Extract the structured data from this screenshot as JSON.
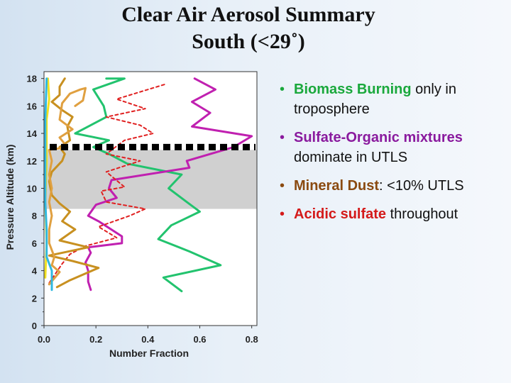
{
  "title_line1": "Clear Air Aerosol Summary",
  "title_line2": "South (<29˚)",
  "bullets": [
    {
      "highlight": "Biomass Burning",
      "rest": " only in troposphere",
      "color": "#1aa83c"
    },
    {
      "highlight": "Sulfate-Organic mixtures",
      "rest": " dominate in UTLS",
      "color": "#8a1a9e"
    },
    {
      "highlight": "Mineral Dust",
      "rest": ": <10% UTLS",
      "color": "#8a4a10"
    },
    {
      "highlight": "Acidic sulfate",
      "rest": " throughout",
      "color": "#d41a1a"
    }
  ],
  "bullet_symbol": "•",
  "chart_data": {
    "type": "line",
    "xlabel": "Number Fraction",
    "ylabel": "Pressure Altitude (km)",
    "xlim": [
      0,
      0.82
    ],
    "ylim": [
      0,
      18.5
    ],
    "xticks": [
      0.0,
      0.2,
      0.4,
      0.6,
      0.8
    ],
    "xtick_labels": [
      "0.0",
      "0.2",
      "0.4",
      "0.6",
      "0.8"
    ],
    "yticks": [
      0,
      2,
      4,
      6,
      8,
      10,
      12,
      14,
      16,
      18
    ],
    "ytick_labels": [
      "0",
      "2",
      "4",
      "6",
      "8",
      "10",
      "12",
      "14",
      "16",
      "18"
    ],
    "grid": false,
    "shaded_band": {
      "y": [
        8.5,
        12.8
      ],
      "color": "#d0d0d0"
    },
    "tropopause_line": {
      "y": 13.0,
      "style": "dashed",
      "color": "#000000"
    },
    "series": [
      {
        "color": "#22c36e",
        "dashed": false,
        "points": [
          [
            0.53,
            2.5
          ],
          [
            0.46,
            3.5
          ],
          [
            0.68,
            4.4
          ],
          [
            0.56,
            5.4
          ],
          [
            0.44,
            6.3
          ],
          [
            0.49,
            7.3
          ],
          [
            0.6,
            8.3
          ],
          [
            0.55,
            9.0
          ],
          [
            0.48,
            10.0
          ],
          [
            0.53,
            11.0
          ],
          [
            0.32,
            11.8
          ],
          [
            0.25,
            12.5
          ],
          [
            0.19,
            13.0
          ],
          [
            0.25,
            13.5
          ],
          [
            0.12,
            14.0
          ],
          [
            0.24,
            15.2
          ],
          [
            0.23,
            16.0
          ],
          [
            0.19,
            17.2
          ],
          [
            0.31,
            18.0
          ],
          [
            0.24,
            18.0
          ]
        ]
      },
      {
        "color": "#c020b0",
        "dashed": false,
        "points": [
          [
            0.18,
            2.6
          ],
          [
            0.17,
            3.2
          ],
          [
            0.17,
            4.0
          ],
          [
            0.16,
            4.6
          ],
          [
            0.18,
            5.3
          ],
          [
            0.17,
            5.7
          ],
          [
            0.3,
            6.0
          ],
          [
            0.3,
            6.5
          ],
          [
            0.21,
            7.6
          ],
          [
            0.17,
            8.0
          ],
          [
            0.2,
            8.8
          ],
          [
            0.28,
            9.3
          ],
          [
            0.25,
            10.0
          ],
          [
            0.26,
            10.6
          ],
          [
            0.56,
            11.5
          ],
          [
            0.55,
            12.0
          ],
          [
            0.73,
            13.0
          ],
          [
            0.8,
            13.8
          ],
          [
            0.57,
            14.5
          ],
          [
            0.64,
            15.5
          ],
          [
            0.57,
            16.3
          ],
          [
            0.66,
            17.2
          ],
          [
            0.58,
            18.0
          ]
        ]
      },
      {
        "color": "#e02020",
        "dashed": true,
        "points": [
          [
            0.02,
            3.1
          ],
          [
            0.07,
            4.5
          ],
          [
            0.1,
            5.2
          ],
          [
            0.16,
            5.8
          ],
          [
            0.28,
            6.4
          ],
          [
            0.21,
            7.2
          ],
          [
            0.33,
            8.0
          ],
          [
            0.39,
            8.5
          ],
          [
            0.24,
            9.0
          ],
          [
            0.22,
            9.8
          ],
          [
            0.31,
            10.1
          ],
          [
            0.24,
            11.2
          ],
          [
            0.37,
            12.0
          ],
          [
            0.24,
            12.5
          ],
          [
            0.31,
            13.5
          ],
          [
            0.42,
            14.0
          ],
          [
            0.37,
            14.6
          ],
          [
            0.24,
            15.2
          ],
          [
            0.39,
            15.8
          ],
          [
            0.28,
            16.5
          ],
          [
            0.47,
            17.6
          ]
        ]
      },
      {
        "color": "#c89020",
        "dashed": false,
        "points": [
          [
            0.05,
            2.8
          ],
          [
            0.1,
            3.3
          ],
          [
            0.21,
            4.2
          ],
          [
            0.11,
            4.7
          ],
          [
            0.02,
            5.1
          ],
          [
            0.17,
            5.7
          ],
          [
            0.06,
            6.2
          ],
          [
            0.12,
            7.0
          ],
          [
            0.07,
            7.6
          ],
          [
            0.1,
            8.3
          ],
          [
            0.06,
            8.9
          ],
          [
            0.03,
            9.5
          ],
          [
            0.02,
            10.5
          ],
          [
            0.03,
            11.2
          ],
          [
            0.07,
            12.0
          ],
          [
            0.08,
            12.5
          ],
          [
            0.06,
            13.0
          ],
          [
            0.1,
            13.5
          ],
          [
            0.09,
            14.5
          ],
          [
            0.11,
            15.2
          ],
          [
            0.07,
            15.7
          ],
          [
            0.03,
            16.3
          ],
          [
            0.06,
            16.8
          ],
          [
            0.06,
            17.4
          ],
          [
            0.08,
            18.0
          ]
        ]
      },
      {
        "color": "#e0a040",
        "dashed": false,
        "points": [
          [
            0.02,
            3.0
          ],
          [
            0.06,
            3.9
          ],
          [
            0.03,
            4.4
          ],
          [
            0.04,
            5.0
          ],
          [
            0.02,
            6.0
          ],
          [
            0.02,
            7.0
          ],
          [
            0.03,
            8.0
          ],
          [
            0.02,
            9.0
          ],
          [
            0.03,
            10.0
          ],
          [
            0.02,
            11.0
          ],
          [
            0.03,
            12.0
          ],
          [
            0.02,
            12.8
          ],
          [
            0.09,
            13.0
          ],
          [
            0.06,
            13.7
          ],
          [
            0.11,
            14.3
          ],
          [
            0.06,
            15.0
          ],
          [
            0.07,
            16.2
          ],
          [
            0.1,
            16.9
          ],
          [
            0.14,
            17.2
          ],
          [
            0.16,
            17.3
          ],
          [
            0.15,
            16.4
          ],
          [
            0.12,
            16.0
          ]
        ]
      },
      {
        "color": "#f0e020",
        "dashed": false,
        "points": [
          [
            0.005,
            3.5
          ],
          [
            0.01,
            6.0
          ],
          [
            0.005,
            9.0
          ],
          [
            0.01,
            12.0
          ],
          [
            0.01,
            15.0
          ],
          [
            0.02,
            16.5
          ],
          [
            0.015,
            18.0
          ]
        ]
      },
      {
        "color": "#30b8e0",
        "dashed": false,
        "points": [
          [
            0.03,
            2.6
          ],
          [
            0.03,
            4.0
          ],
          [
            0.01,
            5.0
          ],
          [
            0.01,
            7.0
          ],
          [
            0.005,
            9.0
          ],
          [
            0.005,
            12.0
          ],
          [
            0.005,
            15.0
          ],
          [
            0.01,
            18.0
          ]
        ]
      }
    ]
  }
}
